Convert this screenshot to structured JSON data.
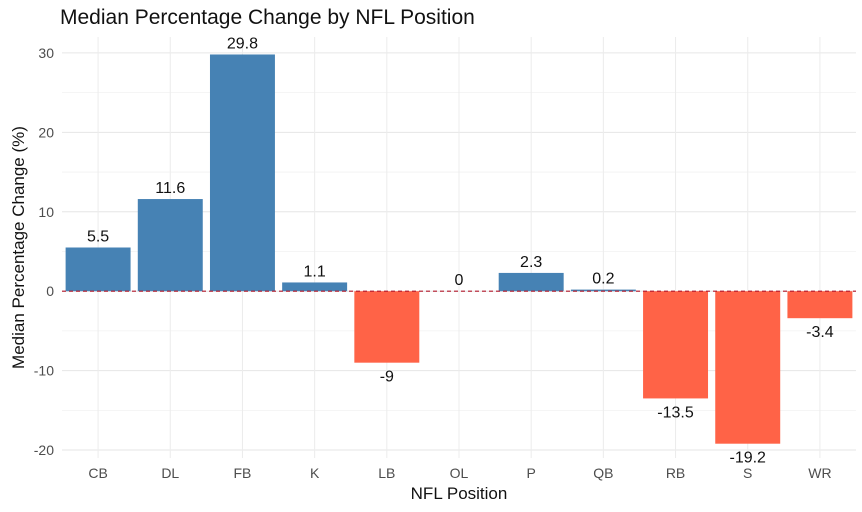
{
  "chart_data": {
    "type": "bar",
    "title": "Median Percentage Change by NFL Position",
    "xlabel": "NFL Position",
    "ylabel": "Median Percentage Change (%)",
    "categories": [
      "CB",
      "DL",
      "FB",
      "K",
      "LB",
      "OL",
      "P",
      "QB",
      "RB",
      "S",
      "WR"
    ],
    "values": [
      5.5,
      11.6,
      29.8,
      1.1,
      -9,
      0,
      2.3,
      0.2,
      -13.5,
      -19.2,
      -3.4
    ],
    "labels": [
      "5.5",
      "11.6",
      "29.8",
      "1.1",
      "-9",
      "0",
      "2.3",
      "0.2",
      "-13.5",
      "-19.2",
      "-3.4"
    ],
    "ylim": [
      -21,
      32
    ],
    "yticks": [
      -20,
      -10,
      0,
      10,
      20,
      30
    ],
    "grid": true,
    "reference_line": {
      "y": 0,
      "style": "dashed",
      "color": "#B2182B"
    },
    "colors": {
      "positive": "#4682B4",
      "negative": "#FF6347"
    },
    "legend": "none"
  }
}
